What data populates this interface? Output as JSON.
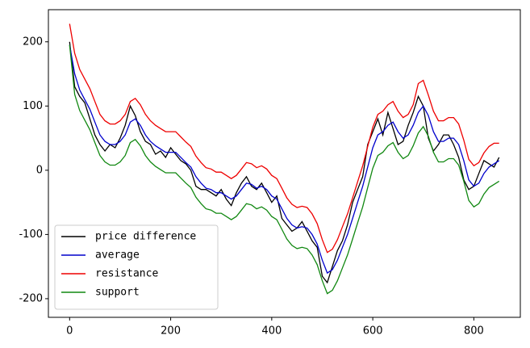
{
  "chart_data": {
    "type": "line",
    "x": [
      0,
      10,
      20,
      30,
      40,
      50,
      60,
      70,
      80,
      90,
      100,
      110,
      120,
      130,
      140,
      150,
      160,
      170,
      180,
      190,
      200,
      210,
      220,
      230,
      240,
      250,
      260,
      270,
      280,
      290,
      300,
      310,
      320,
      330,
      340,
      350,
      360,
      370,
      380,
      390,
      400,
      410,
      420,
      430,
      440,
      450,
      460,
      470,
      480,
      490,
      500,
      510,
      520,
      530,
      540,
      550,
      560,
      570,
      580,
      590,
      600,
      610,
      620,
      630,
      640,
      650,
      660,
      670,
      680,
      690,
      700,
      710,
      720,
      730,
      740,
      750,
      760,
      770,
      780,
      790,
      800,
      810,
      820,
      830,
      840,
      850
    ],
    "series": [
      {
        "name": "price difference",
        "color": "#000000",
        "values": [
          200,
          130,
          115,
          105,
          80,
          55,
          40,
          30,
          40,
          35,
          50,
          70,
          100,
          85,
          60,
          45,
          40,
          25,
          30,
          20,
          35,
          25,
          15,
          10,
          0,
          -25,
          -30,
          -30,
          -35,
          -40,
          -30,
          -45,
          -55,
          -35,
          -20,
          -10,
          -25,
          -30,
          -20,
          -35,
          -50,
          -40,
          -75,
          -85,
          -95,
          -90,
          -80,
          -95,
          -110,
          -120,
          -165,
          -175,
          -150,
          -125,
          -110,
          -85,
          -50,
          -30,
          -10,
          40,
          60,
          80,
          55,
          90,
          65,
          40,
          45,
          70,
          90,
          115,
          100,
          50,
          30,
          40,
          55,
          55,
          40,
          20,
          -15,
          -30,
          -25,
          -5,
          15,
          10,
          5,
          20
        ]
      },
      {
        "name": "average",
        "color": "#0000cc",
        "values": [
          195,
          150,
          125,
          110,
          95,
          75,
          55,
          45,
          40,
          40,
          45,
          55,
          75,
          80,
          70,
          55,
          45,
          38,
          33,
          28,
          28,
          28,
          20,
          12,
          5,
          -10,
          -20,
          -28,
          -30,
          -35,
          -35,
          -40,
          -45,
          -40,
          -30,
          -20,
          -22,
          -28,
          -25,
          -30,
          -40,
          -45,
          -60,
          -75,
          -85,
          -90,
          -88,
          -90,
          -100,
          -115,
          -140,
          -160,
          -155,
          -140,
          -120,
          -100,
          -75,
          -50,
          -25,
          5,
          35,
          55,
          60,
          70,
          75,
          60,
          50,
          55,
          70,
          90,
          100,
          85,
          60,
          45,
          45,
          50,
          50,
          40,
          15,
          -15,
          -25,
          -20,
          -5,
          5,
          10,
          15
        ]
      },
      {
        "name": "resistance",
        "color": "#ee0000",
        "values": [
          228,
          182,
          157,
          142,
          127,
          107,
          87,
          77,
          72,
          72,
          77,
          87,
          107,
          112,
          102,
          87,
          77,
          70,
          65,
          60,
          60,
          60,
          52,
          44,
          37,
          22,
          12,
          4,
          2,
          -3,
          -3,
          -8,
          -13,
          -8,
          2,
          12,
          10,
          4,
          7,
          2,
          -8,
          -13,
          -28,
          -43,
          -53,
          -58,
          -56,
          -58,
          -68,
          -83,
          -108,
          -128,
          -123,
          -108,
          -88,
          -68,
          -43,
          -18,
          7,
          37,
          67,
          87,
          92,
          102,
          107,
          92,
          82,
          87,
          102,
          135,
          140,
          117,
          92,
          77,
          77,
          82,
          82,
          72,
          47,
          17,
          7,
          12,
          27,
          37,
          42,
          42
        ]
      },
      {
        "name": "support",
        "color": "#118811",
        "values": [
          195,
          118,
          93,
          78,
          63,
          43,
          23,
          13,
          8,
          8,
          13,
          23,
          43,
          48,
          38,
          23,
          13,
          6,
          1,
          -4,
          -4,
          -4,
          -12,
          -20,
          -27,
          -42,
          -52,
          -60,
          -62,
          -67,
          -67,
          -72,
          -77,
          -72,
          -62,
          -52,
          -54,
          -60,
          -57,
          -62,
          -72,
          -77,
          -92,
          -107,
          -117,
          -122,
          -120,
          -122,
          -132,
          -147,
          -172,
          -192,
          -187,
          -172,
          -152,
          -132,
          -107,
          -82,
          -57,
          -27,
          3,
          23,
          28,
          38,
          43,
          28,
          18,
          23,
          38,
          58,
          68,
          53,
          28,
          13,
          13,
          18,
          18,
          8,
          -17,
          -47,
          -57,
          -52,
          -37,
          -27,
          -22,
          -17
        ]
      }
    ],
    "xlim": [
      -42,
      892
    ],
    "xticks": [
      0,
      200,
      400,
      600,
      800
    ],
    "ylim": [
      -229,
      250
    ],
    "yticks": [
      -200,
      -100,
      0,
      100,
      200
    ],
    "legend": "lower left",
    "grid": false
  }
}
